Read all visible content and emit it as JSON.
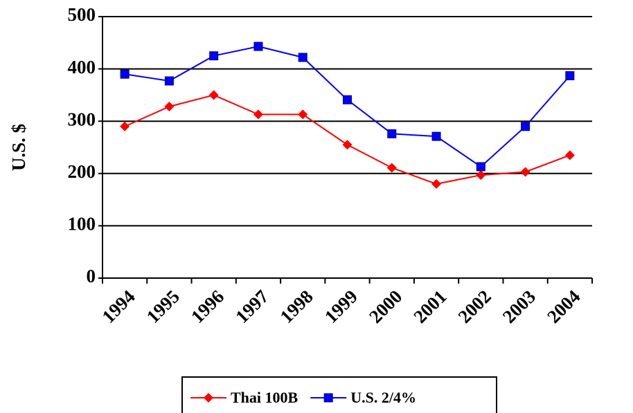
{
  "chart_data": {
    "type": "line",
    "y_label": "U.S. $",
    "categories": [
      "1994",
      "1995",
      "1996",
      "1997",
      "1998",
      "1999",
      "2000",
      "2001",
      "2002",
      "2003",
      "2004"
    ],
    "series": [
      {
        "name": "Thai 100B",
        "color": "#ff0000",
        "marker": "diamond",
        "values": [
          290,
          328,
          350,
          313,
          313,
          255,
          211,
          180,
          197,
          203,
          235
        ]
      },
      {
        "name": "U.S. 2/4%",
        "color": "#0000ff",
        "marker": "square",
        "values": [
          390,
          377,
          425,
          443,
          422,
          341,
          276,
          271,
          213,
          290,
          387
        ]
      }
    ],
    "ylim": [
      0,
      500
    ],
    "yticks": [
      0,
      100,
      200,
      300,
      400,
      500
    ],
    "grid": true
  }
}
